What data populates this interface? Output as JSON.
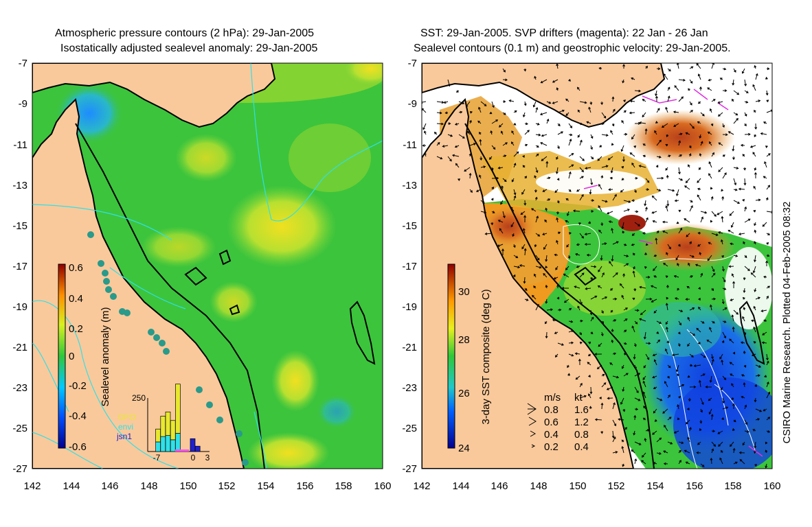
{
  "left_panel": {
    "title_line1": "Atmospheric pressure contours (2 hPa): 29-Jan-2005",
    "title_line2": "Isostatically adjusted sealevel anomaly: 29-Jan-2005",
    "colorbar": {
      "label": "Sealevel anomaly (m)",
      "ticks": [
        "0.6",
        "0.4",
        "0.2",
        "0",
        "-0.2",
        "-0.4",
        "-0.6"
      ]
    },
    "histogram": {
      "ymax_label": "250",
      "x_labels": [
        "-7",
        "0",
        "3"
      ],
      "legend": [
        {
          "label": "GFO",
          "color": "#e8e830"
        },
        {
          "label": "envi",
          "color": "#30e0e8"
        },
        {
          "label": "jsn1",
          "color": "#2020d0"
        }
      ],
      "bars": [
        {
          "x": -6.5,
          "gfo": 60,
          "envi": 45
        },
        {
          "x": -5.5,
          "gfo": 95,
          "envi": 70
        },
        {
          "x": -4.5,
          "gfo": 110,
          "envi": 75
        },
        {
          "x": -3.5,
          "gfo": 90,
          "envi": 55
        },
        {
          "x": -2.5,
          "gfo": 230,
          "envi": 85
        },
        {
          "x": 0.5,
          "jsn1": 60
        },
        {
          "x": 1.5,
          "jsn1": 25
        }
      ]
    }
  },
  "right_panel": {
    "title_line1": "SST: 29-Jan-2005. SVP drifters (magenta): 22 Jan - 26 Jan",
    "title_line2": "Sealevel contours (0.1 m) and geostrophic velocity: 29-Jan-2005.",
    "colorbar": {
      "label": "3-day SST composite (deg C)",
      "ticks": [
        "30",
        "28",
        "26",
        "24"
      ]
    },
    "speed_legend": {
      "header_ms": "m/s",
      "header_kt": "kt",
      "rows": [
        {
          "ms": "0.8",
          "kt": "1.6"
        },
        {
          "ms": "0.6",
          "kt": "1.2"
        },
        {
          "ms": "0.4",
          "kt": "0.8"
        },
        {
          "ms": "0.2",
          "kt": "0.4"
        }
      ]
    },
    "credit": "CSIRO Marine Research. Plotted 04-Feb-2005 08:32"
  },
  "axes": {
    "y_ticks": [
      "-7",
      "-9",
      "-11",
      "-13",
      "-15",
      "-17",
      "-19",
      "-21",
      "-23",
      "-25",
      "-27"
    ],
    "x_ticks": [
      "142",
      "144",
      "146",
      "148",
      "150",
      "152",
      "154",
      "156",
      "158",
      "160"
    ]
  },
  "colors": {
    "land": "#f9c99b",
    "ocean_green": "#3cc43c",
    "coast": "#000000"
  }
}
